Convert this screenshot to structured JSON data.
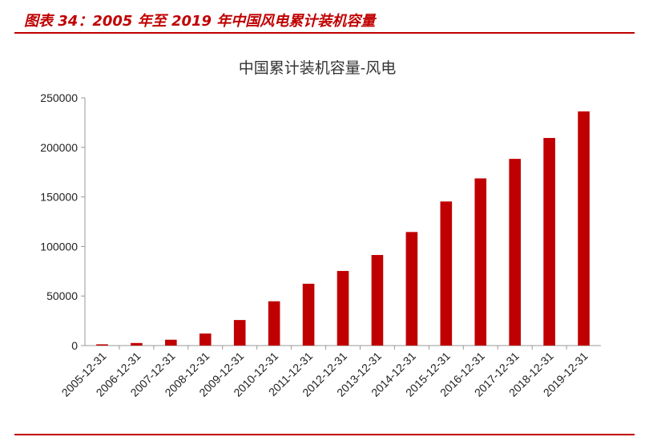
{
  "figure": {
    "caption": "图表 34：2005 年至 2019 年中国风电累计装机容量"
  },
  "colors": {
    "accent": "#c00000",
    "bar": "#c00000",
    "axis": "#999999"
  },
  "chart_data": {
    "type": "bar",
    "title": "中国累计装机容量-风电",
    "xlabel": "",
    "ylabel": "",
    "categories": [
      "2005-12-31",
      "2006-12-31",
      "2007-12-31",
      "2008-12-31",
      "2009-12-31",
      "2010-12-31",
      "2011-12-31",
      "2012-12-31",
      "2013-12-31",
      "2014-12-31",
      "2015-12-31",
      "2016-12-31",
      "2017-12-31",
      "2018-12-31",
      "2019-12-31"
    ],
    "values": [
      1260,
      2600,
      5900,
      12200,
      25800,
      44700,
      62400,
      75300,
      91400,
      114600,
      145400,
      168700,
      188400,
      209500,
      236300
    ],
    "ylim": [
      0,
      250000
    ],
    "yticks": [
      0,
      50000,
      100000,
      150000,
      200000,
      250000
    ],
    "grid": false,
    "legend": "none"
  }
}
